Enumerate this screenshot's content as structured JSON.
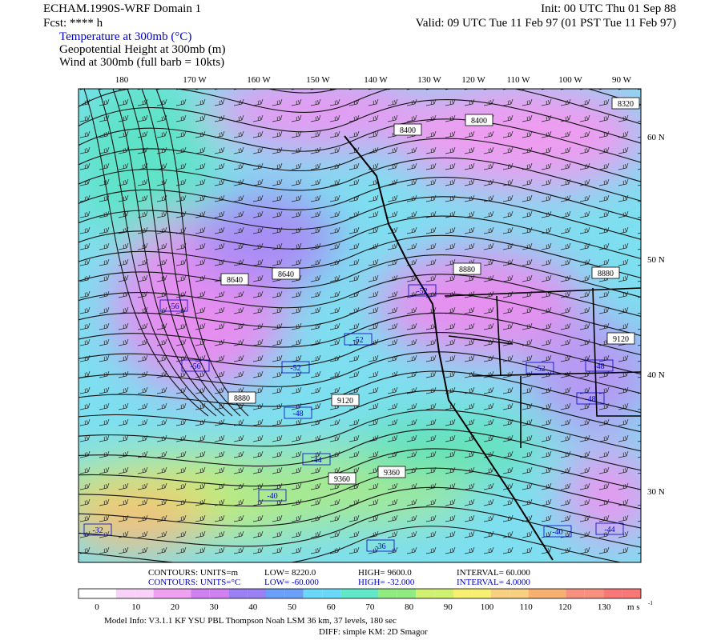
{
  "header": {
    "title": "ECHAM.1990S-WRF Domain 1",
    "fcst": "Fcst: **** h",
    "init": "Init: 00 UTC Thu 01 Sep 88",
    "valid": "Valid: 09 UTC Tue 11 Feb 97 (01 PST Tue 11 Feb 97)",
    "fields": [
      "Temperature at 300mb (°C)",
      "Geopotential Height at 300mb (m)",
      "Wind at 300mb (full barb = 10kts)"
    ]
  },
  "map": {
    "lon_labels": [
      "180",
      "170 W",
      "160 W",
      "150 W",
      "140 W",
      "130 W",
      "120 W",
      "110 W",
      "100 W",
      "90 W"
    ],
    "lat_labels": [
      "60 N",
      "50 N",
      "40 N",
      "30 N"
    ],
    "height_labels": [
      "8400",
      "8400",
      "8320",
      "8640",
      "8640",
      "8880",
      "8880",
      "9120",
      "8880",
      "9120",
      "9360",
      "9360"
    ],
    "temp_labels": [
      "-56",
      "-56",
      "-52",
      "-52",
      "-52",
      "-48",
      "-44",
      "-40",
      "-32",
      "-52",
      "-48",
      "-48",
      "-44",
      "-40",
      "-36"
    ]
  },
  "footer": {
    "height_contours": [
      "CONTOURS:  UNITS=m",
      "LOW=   8220.0",
      "HIGH=   9600.0",
      "INTERVAL=   60.000"
    ],
    "temp_contours": [
      "CONTOURS:  UNITS=°C",
      "LOW=  -60.000",
      "HIGH=  -32.000",
      "INTERVAL=   4.0000"
    ],
    "colorbar": {
      "ticks": [
        0,
        10,
        20,
        30,
        40,
        50,
        60,
        70,
        80,
        90,
        100,
        110,
        120,
        130
      ],
      "unit": "m s",
      "unit_exp": "-1"
    },
    "model_info": "Model Info: V3.1.1    KF    YSU PBL   Thompson    Noah LSM   36 km,   37 levels,  180 sec",
    "diff": "DIFF: simple KM: 2D Smagor"
  }
}
